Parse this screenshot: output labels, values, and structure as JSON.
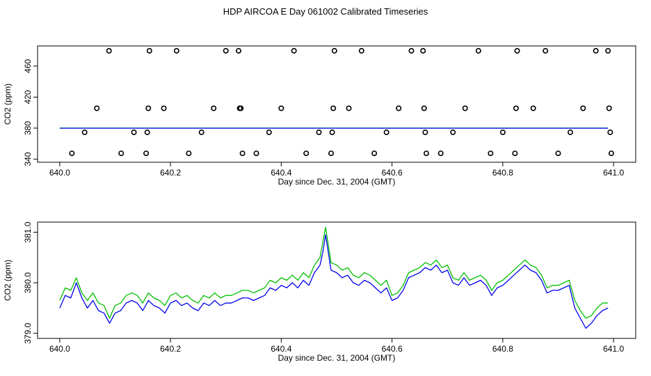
{
  "title": "HDP AIRCOA E  Day 061002  Calibrated Timeseries",
  "chart_data": [
    {
      "type": "scatter",
      "xlabel": "Day since Dec. 31, 2004 (GMT)",
      "ylabel": "CO2 (ppm)",
      "xlim": [
        639.96,
        641.04
      ],
      "ylim": [
        336,
        486
      ],
      "xticks": [
        "640.0",
        "640.2",
        "640.4",
        "640.6",
        "640.8",
        "641.0"
      ],
      "xtick_values": [
        640.0,
        640.2,
        640.4,
        640.6,
        640.8,
        641.0
      ],
      "yticks": [
        "340",
        "380",
        "420",
        "460"
      ],
      "ytick_values": [
        340,
        380,
        420,
        460
      ],
      "grid": false,
      "legend": "none",
      "series": [
        {
          "marker": "open-circle",
          "color": "#000000",
          "points": [
            [
              640.022,
              347.5
            ],
            [
              640.045,
              374.6
            ],
            [
              640.067,
              405.6
            ],
            [
              640.089,
              479.8
            ],
            [
              640.111,
              347.5
            ],
            [
              640.134,
              374.6
            ],
            [
              640.156,
              347.5
            ],
            [
              640.158,
              374.6
            ],
            [
              640.16,
              405.6
            ],
            [
              640.162,
              479.8
            ],
            [
              640.188,
              405.6
            ],
            [
              640.211,
              479.8
            ],
            [
              640.233,
              347.5
            ],
            [
              640.256,
              374.6
            ],
            [
              640.278,
              405.6
            ],
            [
              640.3,
              479.8
            ],
            [
              640.323,
              479.8
            ],
            [
              640.325,
              405.6
            ],
            [
              640.327,
              405.6
            ],
            [
              640.33,
              347.5
            ],
            [
              640.355,
              347.5
            ],
            [
              640.378,
              374.6
            ],
            [
              640.4,
              405.6
            ],
            [
              640.423,
              479.8
            ],
            [
              640.445,
              347.5
            ],
            [
              640.468,
              374.6
            ],
            [
              640.49,
              347.5
            ],
            [
              640.492,
              374.6
            ],
            [
              640.494,
              405.6
            ],
            [
              640.496,
              479.8
            ],
            [
              640.522,
              405.6
            ],
            [
              640.545,
              479.8
            ],
            [
              640.568,
              347.5
            ],
            [
              640.59,
              374.6
            ],
            [
              640.612,
              405.6
            ],
            [
              640.635,
              479.8
            ],
            [
              640.656,
              479.8
            ],
            [
              640.658,
              405.6
            ],
            [
              640.66,
              374.6
            ],
            [
              640.662,
              347.5
            ],
            [
              640.688,
              347.5
            ],
            [
              640.71,
              374.6
            ],
            [
              640.732,
              405.6
            ],
            [
              640.756,
              479.8
            ],
            [
              640.778,
              347.5
            ],
            [
              640.8,
              374.6
            ],
            [
              640.822,
              347.5
            ],
            [
              640.824,
              405.6
            ],
            [
              640.826,
              479.8
            ],
            [
              640.855,
              405.6
            ],
            [
              640.877,
              479.8
            ],
            [
              640.9,
              347.5
            ],
            [
              640.922,
              374.6
            ],
            [
              640.945,
              405.6
            ],
            [
              640.968,
              479.8
            ],
            [
              640.99,
              479.8
            ],
            [
              640.992,
              405.6
            ],
            [
              640.994,
              374.6
            ],
            [
              640.996,
              347.5
            ]
          ]
        },
        {
          "style": "line",
          "color": "#00c000",
          "x_range": [
            640.0,
            640.99
          ],
          "level": 380.1
        },
        {
          "style": "line",
          "color": "#0000ee",
          "x_range": [
            640.0,
            640.99
          ],
          "level": 379.9
        }
      ]
    },
    {
      "type": "line",
      "xlabel": "Day since Dec. 31, 2004 (GMT)",
      "ylabel": "CO2 (ppm)",
      "xlim": [
        639.96,
        641.04
      ],
      "ylim": [
        378.9,
        381.2
      ],
      "xticks": [
        "640.0",
        "640.2",
        "640.4",
        "640.6",
        "640.8",
        "641.0"
      ],
      "xtick_values": [
        640.0,
        640.2,
        640.4,
        640.6,
        640.8,
        641.0
      ],
      "yticks": [
        "379.0",
        "380.0",
        "381.0"
      ],
      "ytick_values": [
        379.0,
        380.0,
        381.0
      ],
      "grid": false,
      "legend": "none",
      "x": [
        640.0,
        640.01,
        640.02,
        640.03,
        640.04,
        640.05,
        640.06,
        640.07,
        640.08,
        640.09,
        640.1,
        640.11,
        640.12,
        640.13,
        640.14,
        640.15,
        640.16,
        640.17,
        640.18,
        640.19,
        640.2,
        640.21,
        640.22,
        640.23,
        640.24,
        640.25,
        640.26,
        640.27,
        640.28,
        640.29,
        640.3,
        640.31,
        640.32,
        640.33,
        640.34,
        640.35,
        640.36,
        640.37,
        640.38,
        640.39,
        640.4,
        640.41,
        640.42,
        640.43,
        640.44,
        640.45,
        640.46,
        640.47,
        640.475,
        640.48,
        640.49,
        640.5,
        640.51,
        640.52,
        640.53,
        640.54,
        640.55,
        640.56,
        640.57,
        640.58,
        640.59,
        640.6,
        640.61,
        640.62,
        640.63,
        640.64,
        640.65,
        640.66,
        640.67,
        640.68,
        640.69,
        640.7,
        640.71,
        640.72,
        640.73,
        640.74,
        640.75,
        640.76,
        640.77,
        640.78,
        640.79,
        640.8,
        640.81,
        640.82,
        640.83,
        640.84,
        640.85,
        640.86,
        640.87,
        640.88,
        640.89,
        640.9,
        640.91,
        640.92,
        640.93,
        640.94,
        640.95,
        640.96,
        640.97,
        640.98,
        640.99
      ],
      "series": [
        {
          "color": "#00c000",
          "values": [
            379.65,
            379.9,
            379.85,
            380.1,
            379.8,
            379.65,
            379.8,
            379.6,
            379.55,
            379.3,
            379.55,
            379.6,
            379.75,
            379.8,
            379.75,
            379.6,
            379.8,
            379.7,
            379.65,
            379.55,
            379.75,
            379.8,
            379.7,
            379.75,
            379.65,
            379.6,
            379.75,
            379.7,
            379.8,
            379.7,
            379.75,
            379.75,
            379.8,
            379.85,
            379.85,
            379.8,
            379.85,
            379.9,
            380.05,
            380.0,
            380.1,
            380.05,
            380.15,
            380.05,
            380.2,
            380.1,
            380.35,
            380.5,
            380.8,
            381.1,
            380.4,
            380.35,
            380.25,
            380.3,
            380.15,
            380.1,
            380.2,
            380.15,
            380.05,
            379.95,
            380.05,
            379.75,
            379.8,
            379.95,
            380.2,
            380.25,
            380.3,
            380.4,
            380.35,
            380.45,
            380.3,
            380.35,
            380.1,
            380.05,
            380.2,
            380.05,
            380.1,
            380.15,
            380.05,
            379.85,
            380.0,
            380.05,
            380.15,
            380.25,
            380.35,
            380.45,
            380.35,
            380.3,
            380.15,
            379.9,
            379.95,
            379.95,
            380.0,
            380.05,
            379.65,
            379.45,
            379.3,
            379.35,
            379.5,
            379.6,
            379.6
          ]
        },
        {
          "color": "#0000ee",
          "values": [
            379.5,
            379.75,
            379.7,
            380.0,
            379.7,
            379.5,
            379.65,
            379.45,
            379.4,
            379.2,
            379.4,
            379.45,
            379.6,
            379.65,
            379.6,
            379.45,
            379.65,
            379.55,
            379.5,
            379.4,
            379.6,
            379.65,
            379.55,
            379.6,
            379.5,
            379.45,
            379.6,
            379.55,
            379.65,
            379.55,
            379.6,
            379.6,
            379.65,
            379.7,
            379.7,
            379.65,
            379.7,
            379.75,
            379.9,
            379.85,
            379.95,
            379.9,
            380.0,
            379.9,
            380.05,
            379.95,
            380.2,
            380.35,
            380.6,
            380.95,
            380.25,
            380.2,
            380.1,
            380.15,
            380.0,
            379.95,
            380.05,
            380.0,
            379.9,
            379.8,
            379.9,
            379.65,
            379.7,
            379.85,
            380.1,
            380.15,
            380.2,
            380.3,
            380.25,
            380.35,
            380.2,
            380.25,
            380.0,
            379.95,
            380.1,
            379.95,
            380.0,
            380.05,
            379.95,
            379.75,
            379.9,
            379.95,
            380.05,
            380.15,
            380.25,
            380.35,
            380.25,
            380.2,
            380.05,
            379.8,
            379.85,
            379.85,
            379.9,
            379.95,
            379.5,
            379.3,
            379.1,
            379.2,
            379.35,
            379.45,
            379.5
          ]
        }
      ]
    }
  ]
}
